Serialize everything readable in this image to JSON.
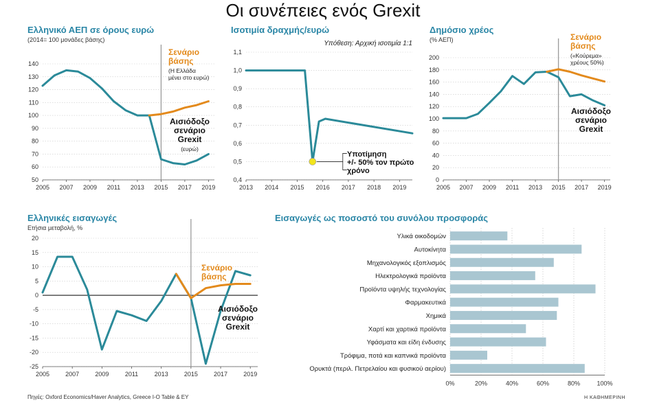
{
  "page_title": "Οι συνέπειες ενός Grexit",
  "source_note": "Πηγές: Oxford Economics/Haver Analytics, Greece I-O Table & EY",
  "publisher": "Η ΚΑΘΗΜΕΡΙΝΗ",
  "colors": {
    "base": "#2b8a99",
    "alt": "#e38a1c",
    "title": "#2a86a6",
    "bar": "#a9c6d1",
    "marker": "#f2e41c"
  },
  "chart_data": [
    {
      "id": "gdp",
      "type": "line",
      "title": "Ελληνικό ΑΕΠ σε όρους ευρώ",
      "subtitle": "(2014= 100 μονάδες βάσης)",
      "ylim": [
        50,
        140
      ],
      "yticks": [
        50,
        60,
        70,
        80,
        90,
        100,
        110,
        120,
        130,
        140
      ],
      "xlim": [
        2005,
        2019.5
      ],
      "xticks": [
        2005,
        2007,
        2009,
        2011,
        2013,
        2015,
        2017,
        2019
      ],
      "vline": 2015,
      "series": [
        {
          "role": "base",
          "x": [
            2005,
            2006,
            2007,
            2008,
            2009,
            2010,
            2011,
            2012,
            2013,
            2014,
            2015,
            2016,
            2017,
            2018,
            2019
          ],
          "y": [
            123,
            131,
            135,
            134,
            129,
            121,
            111,
            104,
            100,
            100,
            66,
            63,
            62,
            65,
            70
          ]
        },
        {
          "role": "alt",
          "x": [
            2014,
            2015,
            2016,
            2017,
            2018,
            2019
          ],
          "y": [
            100,
            101,
            103,
            106,
            108,
            111
          ]
        }
      ],
      "annotations": [
        {
          "lines": [
            "Σενάριο",
            "βάσης"
          ],
          "sub": [
            "(Η Ελλάδα",
            "μένει στο ευρώ)"
          ],
          "color": "alt"
        },
        {
          "lines": [
            "Αισιόδοξο",
            "σενάριο",
            "Grexit"
          ],
          "sub": [
            "(ευρώ)"
          ],
          "color": "text"
        }
      ]
    },
    {
      "id": "fx",
      "type": "line",
      "title": "Ισοτιμία δραχμής/ευρώ",
      "note": "Υπόθεση: Αρχική ισοτιμία 1:1",
      "ylim": [
        0.4,
        1.1
      ],
      "yticks": [
        "0,4",
        "0,5",
        "0,6",
        "0,7",
        "0,8",
        "0,9",
        "1,0",
        "1,1"
      ],
      "xlim": [
        2013,
        2019.5
      ],
      "xticks": [
        2013,
        2014,
        2015,
        2016,
        2017,
        2018,
        2019
      ],
      "series": [
        {
          "role": "base",
          "x": [
            2013,
            2015.3,
            2015.6,
            2015.85,
            2016.1,
            2019.5
          ],
          "y": [
            1.0,
            1.0,
            0.5,
            0.72,
            0.735,
            0.655
          ]
        }
      ],
      "marker": {
        "x": 2015.6,
        "y": 0.5
      },
      "annotations": [
        {
          "lines": [
            "Υποτίμηση",
            "+/- 50% τον πρώτο",
            "χρόνο"
          ]
        }
      ]
    },
    {
      "id": "debt",
      "type": "line",
      "title": "Δημόσιο χρέος",
      "subtitle": "(% ΑΕΠ)",
      "ylim": [
        0,
        200
      ],
      "yticks": [
        0,
        20,
        40,
        60,
        80,
        100,
        120,
        140,
        160,
        180,
        200
      ],
      "xlim": [
        2005,
        2019.5
      ],
      "xticks": [
        2005,
        2007,
        2009,
        2011,
        2013,
        2015,
        2017,
        2019
      ],
      "vline": 2015,
      "series": [
        {
          "role": "base",
          "x": [
            2005,
            2006,
            2007,
            2008,
            2009,
            2010,
            2011,
            2012,
            2013,
            2014,
            2015,
            2016,
            2017,
            2018,
            2019
          ],
          "y": [
            101,
            101,
            101,
            108,
            126,
            145,
            170,
            157,
            176,
            177,
            168,
            137,
            140,
            130,
            122
          ]
        },
        {
          "role": "alt",
          "x": [
            2014,
            2015,
            2016,
            2017,
            2018,
            2019
          ],
          "y": [
            177,
            181,
            177,
            171,
            166,
            161
          ]
        }
      ],
      "annotations": [
        {
          "lines": [
            "Σενάριο",
            "βάσης"
          ],
          "sub": [
            "(«Κούρεμα»",
            "χρέους 50%)"
          ],
          "color": "alt"
        },
        {
          "lines": [
            "Αισιόδοξο",
            "σενάριο",
            "Grexit"
          ],
          "color": "text"
        }
      ]
    },
    {
      "id": "imports",
      "type": "line",
      "title": "Ελληνικές εισαγωγές",
      "subtitle": "Ετήσια μεταβολή, %",
      "ylim": [
        -25,
        20
      ],
      "yticks": [
        -25,
        -20,
        -15,
        -10,
        -5,
        0,
        5,
        10,
        15,
        20
      ],
      "xlim": [
        2005,
        2019.5
      ],
      "xticks": [
        2005,
        2007,
        2009,
        2011,
        2013,
        2015,
        2017,
        2019
      ],
      "vline": 2015,
      "series": [
        {
          "role": "base",
          "x": [
            2005,
            2006,
            2007,
            2008,
            2009,
            2010,
            2011,
            2012,
            2013,
            2014,
            2015,
            2016,
            2017,
            2018,
            2019
          ],
          "y": [
            1,
            13.5,
            13.5,
            2,
            -19,
            -5.5,
            -7,
            -9,
            -2,
            7.5,
            -1,
            -24,
            -5.5,
            8.5,
            7
          ]
        },
        {
          "role": "alt",
          "x": [
            2014,
            2015,
            2016,
            2017,
            2018,
            2019
          ],
          "y": [
            7.5,
            -1,
            2.5,
            3.5,
            4,
            4
          ]
        }
      ],
      "annotations": [
        {
          "lines": [
            "Σενάριο",
            "βάσης"
          ],
          "color": "alt"
        },
        {
          "lines": [
            "Αισιόδοξο",
            "σενάριο",
            "Grexit"
          ],
          "color": "text"
        }
      ]
    },
    {
      "id": "shares",
      "type": "bar",
      "title": "Εισαγωγές ως ποσοστό του συνόλου προσφοράς",
      "categories": [
        "Υλικά οικοδομών",
        "Αυτοκίνητα",
        "Μηχανολογικός εξοπλισμός",
        "Ηλεκτρολογικά προϊόντα",
        "Προϊόντα υψηλής τεχνολογίας",
        "Φαρμακευτικά",
        "Χημικά",
        "Χαρτί και χαρτικά προϊόντα",
        "Υφάσματα και είδη ένδυσης",
        "Τρόφιμα, ποτά και καπνικά προϊόντα",
        "Ορυκτά (περιλ. Πετρελαίου και φυσικού αερίου)"
      ],
      "values": [
        37,
        85,
        67,
        55,
        94,
        70,
        69,
        49,
        62,
        24,
        87
      ],
      "xlim": [
        0,
        100
      ],
      "xticks": [
        "0%",
        "20%",
        "40%",
        "60%",
        "80%",
        "100%"
      ]
    }
  ]
}
